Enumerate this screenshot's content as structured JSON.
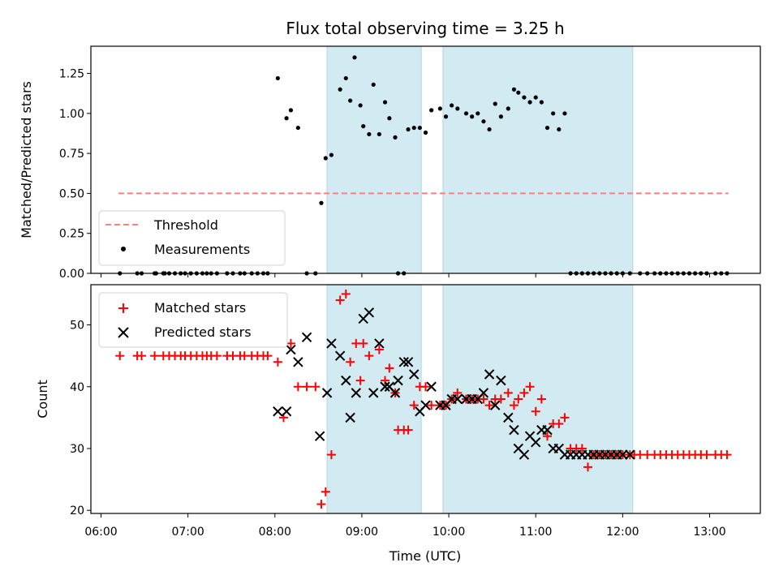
{
  "title": "Flux total observing time = 3.25 h",
  "xlabel": "Time (UTC)",
  "colors": {
    "threshold": "#ff7f7f",
    "measurement": "#000000",
    "matched": "#ff0000",
    "predicted": "#000000",
    "span_fill": "#add8e6"
  },
  "chart_data": [
    {
      "type": "scatter",
      "ylabel": "Matched/Predicted stars",
      "xlim": [
        "05:53",
        "13:35"
      ],
      "ylim": [
        0,
        1.42
      ],
      "yticks": [
        0.0,
        0.25,
        0.5,
        0.75,
        1.0,
        1.25
      ],
      "ytick_labels": [
        "0.00",
        "0.25",
        "0.50",
        "0.75",
        "1.00",
        "1.25"
      ],
      "grid": false,
      "legend_position": "lower-left",
      "observing_spans": [
        [
          "08:36",
          "09:41"
        ],
        [
          "09:56",
          "12:07"
        ]
      ],
      "series": [
        {
          "name": "Threshold",
          "kind": "line",
          "style": "dashed",
          "x": [
            "06:12",
            "13:13"
          ],
          "y": [
            0.5,
            0.5
          ]
        },
        {
          "name": "Measurements",
          "kind": "points",
          "x": [
            "06:13",
            "06:25",
            "06:28",
            "06:37",
            "06:38",
            "06:43",
            "06:44",
            "06:47",
            "06:51",
            "06:55",
            "06:58",
            "07:02",
            "07:06",
            "07:10",
            "07:13",
            "07:16",
            "07:20",
            "07:27",
            "07:31",
            "07:36",
            "07:39",
            "07:44",
            "07:48",
            "07:52",
            "07:55",
            "08:02",
            "08:08",
            "08:11",
            "08:16",
            "08:22",
            "08:28",
            "08:32",
            "08:35",
            "08:39",
            "08:45",
            "08:49",
            "08:52",
            "08:55",
            "08:59",
            "09:01",
            "09:05",
            "09:08",
            "09:12",
            "09:16",
            "09:19",
            "09:23",
            "09:25",
            "09:29",
            "09:32",
            "09:36",
            "09:40",
            "09:44",
            "09:48",
            "09:54",
            "09:58",
            "10:02",
            "10:06",
            "10:12",
            "10:16",
            "10:20",
            "10:24",
            "10:28",
            "10:32",
            "10:36",
            "10:41",
            "10:45",
            "10:48",
            "10:52",
            "10:56",
            "11:00",
            "11:04",
            "11:08",
            "11:12",
            "11:16",
            "11:20",
            "11:24",
            "11:28",
            "11:32",
            "11:36",
            "11:40",
            "11:44",
            "11:48",
            "11:52",
            "11:56",
            "12:00",
            "12:05",
            "12:12",
            "12:17",
            "12:22",
            "12:26",
            "12:30",
            "12:34",
            "12:38",
            "12:42",
            "12:46",
            "12:50",
            "12:54",
            "12:58",
            "13:04",
            "13:08",
            "13:12"
          ],
          "y": [
            0,
            0,
            0,
            0,
            0,
            0,
            0,
            0,
            0,
            0,
            0,
            0,
            0,
            0,
            0,
            0,
            0,
            0,
            0,
            0,
            0,
            0,
            0,
            0,
            0,
            1.22,
            0.97,
            1.02,
            0.91,
            0,
            0,
            0.44,
            0.72,
            0.74,
            1.15,
            1.22,
            1.08,
            1.35,
            1.05,
            0.92,
            0.87,
            1.18,
            0.87,
            1.07,
            0.97,
            0.85,
            0,
            0,
            0.9,
            0.91,
            0.91,
            0.88,
            1.02,
            1.03,
            0.98,
            1.05,
            1.03,
            1.0,
            0.98,
            1.0,
            0.95,
            0.9,
            1.06,
            0.98,
            1.03,
            1.15,
            1.13,
            1.1,
            1.07,
            1.1,
            1.07,
            0.91,
            1.0,
            0.9,
            1.0,
            0,
            0,
            0,
            0,
            0,
            0,
            0,
            0,
            0,
            0,
            0,
            0,
            0,
            0,
            0,
            0,
            0,
            0,
            0,
            0,
            0,
            0,
            0,
            0,
            0,
            0
          ]
        }
      ]
    },
    {
      "type": "scatter",
      "ylabel": "Count",
      "xlim": [
        "05:53",
        "13:35"
      ],
      "ylim": [
        19.5,
        56.5
      ],
      "yticks": [
        20,
        30,
        40,
        50
      ],
      "ytick_labels": [
        "20",
        "30",
        "40",
        "50"
      ],
      "xticks": [
        "06:00",
        "07:00",
        "08:00",
        "09:00",
        "10:00",
        "11:00",
        "12:00",
        "13:00"
      ],
      "grid": false,
      "legend_position": "upper-left",
      "observing_spans": [
        [
          "08:36",
          "09:41"
        ],
        [
          "09:56",
          "12:07"
        ]
      ],
      "series": [
        {
          "name": "Matched stars",
          "marker": "plus",
          "x": [
            "06:13",
            "06:25",
            "06:28",
            "06:37",
            "06:43",
            "06:47",
            "06:51",
            "06:55",
            "06:58",
            "07:02",
            "07:06",
            "07:10",
            "07:13",
            "07:16",
            "07:20",
            "07:27",
            "07:31",
            "07:36",
            "07:39",
            "07:44",
            "07:48",
            "07:52",
            "07:55",
            "08:02",
            "08:06",
            "08:11",
            "08:16",
            "08:22",
            "08:28",
            "08:32",
            "08:35",
            "08:39",
            "08:45",
            "08:49",
            "08:52",
            "08:56",
            "08:59",
            "09:01",
            "09:05",
            "09:12",
            "09:16",
            "09:19",
            "09:23",
            "09:25",
            "09:29",
            "09:32",
            "09:36",
            "09:40",
            "09:44",
            "09:48",
            "09:54",
            "09:58",
            "10:02",
            "10:06",
            "10:12",
            "10:16",
            "10:20",
            "10:24",
            "10:28",
            "10:32",
            "10:36",
            "10:41",
            "10:45",
            "10:48",
            "10:52",
            "10:56",
            "11:00",
            "11:04",
            "11:08",
            "11:12",
            "11:16",
            "11:20",
            "11:24",
            "11:28",
            "11:32",
            "11:36",
            "11:40",
            "11:44",
            "11:48",
            "11:52",
            "11:56",
            "12:00",
            "12:05",
            "12:08",
            "12:12",
            "12:17",
            "12:22",
            "12:26",
            "12:30",
            "12:34",
            "12:38",
            "12:42",
            "12:46",
            "12:50",
            "12:54",
            "12:58",
            "13:04",
            "13:08",
            "13:12"
          ],
          "y": [
            45,
            45,
            45,
            45,
            45,
            45,
            45,
            45,
            45,
            45,
            45,
            45,
            45,
            45,
            45,
            45,
            45,
            45,
            45,
            45,
            45,
            45,
            45,
            44,
            35,
            47,
            40,
            40,
            40,
            21,
            23,
            29,
            54,
            55,
            44,
            47,
            41,
            47,
            45,
            46,
            41,
            43,
            39,
            33,
            33,
            33,
            37,
            40,
            40,
            37,
            37,
            37,
            38,
            39,
            38,
            38,
            38,
            38,
            37,
            38,
            38,
            39,
            37,
            38,
            39,
            40,
            36,
            38,
            32,
            34,
            34,
            35,
            30,
            30,
            30,
            27,
            29,
            29,
            29,
            29,
            29,
            29,
            29,
            29,
            29,
            29,
            29,
            29,
            29,
            29,
            29,
            29,
            29,
            29,
            29,
            29,
            29,
            29,
            29
          ],
          "marker_note": "red plus"
        },
        {
          "name": "Predicted stars",
          "marker": "x",
          "x": [
            "08:02",
            "08:08",
            "08:11",
            "08:16",
            "08:22",
            "08:31",
            "08:36",
            "08:39",
            "08:45",
            "08:49",
            "08:52",
            "08:56",
            "09:01",
            "09:05",
            "09:08",
            "09:12",
            "09:16",
            "09:19",
            "09:23",
            "09:25",
            "09:29",
            "09:32",
            "09:36",
            "09:40",
            "09:44",
            "09:48",
            "09:54",
            "09:58",
            "10:02",
            "10:06",
            "10:12",
            "10:16",
            "10:20",
            "10:24",
            "10:28",
            "10:32",
            "10:36",
            "10:41",
            "10:45",
            "10:48",
            "10:52",
            "10:56",
            "11:00",
            "11:04",
            "11:08",
            "11:12",
            "11:16",
            "11:20",
            "11:24",
            "11:28",
            "11:32",
            "11:36",
            "11:40",
            "11:44",
            "11:48",
            "11:52",
            "11:56",
            "12:00",
            "12:05"
          ],
          "y": [
            36,
            36,
            46,
            44,
            48,
            32,
            39,
            47,
            45,
            41,
            35,
            39,
            51,
            52,
            39,
            47,
            40,
            40,
            39,
            41,
            44,
            44,
            42,
            36,
            37,
            40,
            37,
            37,
            38,
            38,
            38,
            38,
            38,
            39,
            42,
            37,
            41,
            35,
            33,
            30,
            29,
            32,
            31,
            33,
            33,
            30,
            30,
            29,
            29,
            29,
            29,
            29,
            29,
            29,
            29,
            29,
            29,
            29,
            29
          ]
        }
      ]
    }
  ]
}
